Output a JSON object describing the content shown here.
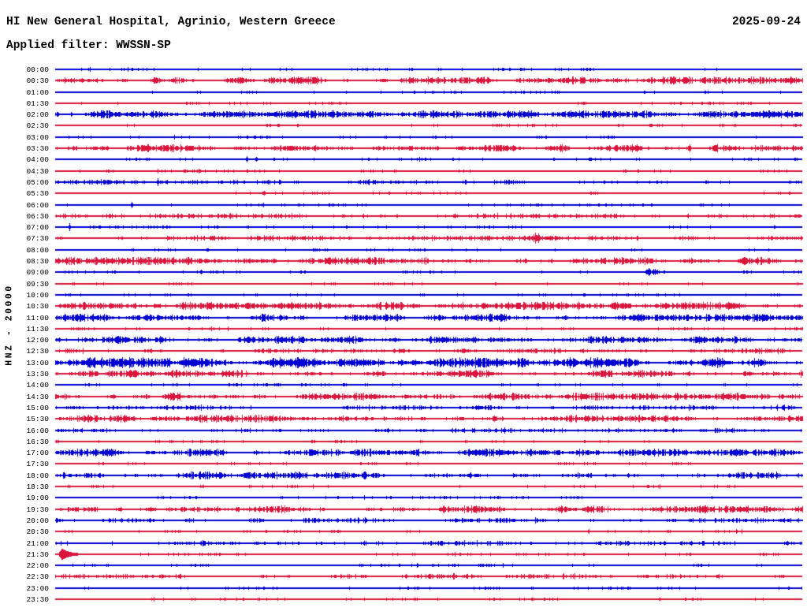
{
  "header": {
    "title": "HI New General Hospital, Agrinio, Western Greece",
    "date": "2025-09-24",
    "filter_label": "Applied filter: WWSSN-SP"
  },
  "y_axis_label": "HNZ - 20000",
  "colors": {
    "trace_blue": "#0000d2",
    "trace_red": "#dc143c",
    "text": "#000000",
    "background": "#ffffff"
  },
  "chart_data": {
    "type": "line",
    "subtype": "helicorder-24h-drum-plot",
    "title": "HI New General Hospital, Agrinio, Western Greece",
    "date": "2025-09-24",
    "filter": "WWSSN-SP",
    "channel": "HNZ",
    "scale": "20000",
    "row_interval_minutes": 30,
    "legend": "48 half-hour traces, alternating blue (:00) and red (:30); n = relative noise level 0-4; events: [type,x,amp,width] with type s=spike b=burst o=large blob, x in image px 70-1018",
    "rows": [
      {
        "t": "00:00",
        "c": "blue",
        "n": 1,
        "e": []
      },
      {
        "t": "00:30",
        "c": "red",
        "n": 3,
        "e": []
      },
      {
        "t": "01:00",
        "c": "blue",
        "n": 1,
        "e": []
      },
      {
        "t": "01:30",
        "c": "red",
        "n": 1,
        "e": []
      },
      {
        "t": "02:00",
        "c": "blue",
        "n": 3,
        "e": [
          [
            "b",
            355,
            4,
            16
          ],
          [
            "b",
            383,
            3,
            10
          ],
          [
            "b",
            965,
            3.2,
            40
          ]
        ]
      },
      {
        "t": "02:30",
        "c": "red",
        "n": 1,
        "e": [
          [
            "s",
            836,
            2,
            0
          ]
        ]
      },
      {
        "t": "03:00",
        "c": "blue",
        "n": 1,
        "e": []
      },
      {
        "t": "03:30",
        "c": "red",
        "n": 3,
        "e": [
          [
            "s",
            875,
            5,
            0
          ]
        ]
      },
      {
        "t": "04:00",
        "c": "blue",
        "n": 1,
        "e": [
          [
            "s",
            313,
            4,
            0
          ],
          [
            "s",
            325,
            3,
            0
          ],
          [
            "b",
            346,
            2,
            10
          ]
        ]
      },
      {
        "t": "04:30",
        "c": "red",
        "n": 1,
        "e": [
          [
            "s",
            237,
            2,
            0
          ]
        ]
      },
      {
        "t": "05:00",
        "c": "blue",
        "n": 2,
        "e": [
          [
            "s",
            200,
            4.5,
            0
          ],
          [
            "b",
            152,
            1.8,
            22
          ]
        ]
      },
      {
        "t": "05:30",
        "c": "red",
        "n": 1,
        "e": [
          [
            "s",
            335,
            3,
            0
          ]
        ]
      },
      {
        "t": "06:00",
        "c": "blue",
        "n": 1,
        "e": [
          [
            "s",
            167,
            4,
            0
          ]
        ]
      },
      {
        "t": "06:30",
        "c": "red",
        "n": 2,
        "e": [
          [
            "s",
            615,
            3,
            0
          ],
          [
            "s",
            912,
            2.5,
            0
          ]
        ]
      },
      {
        "t": "07:00",
        "c": "blue",
        "n": 1,
        "e": [
          [
            "s",
            88,
            4.5,
            0
          ],
          [
            "b",
            115,
            1.5,
            18
          ]
        ]
      },
      {
        "t": "07:30",
        "c": "red",
        "n": 2,
        "e": [
          [
            "b",
            668,
            3,
            8
          ],
          [
            "b",
            680,
            6,
            10
          ],
          [
            "b",
            695,
            2.5,
            10
          ]
        ]
      },
      {
        "t": "08:00",
        "c": "blue",
        "n": 1,
        "e": []
      },
      {
        "t": "08:30",
        "c": "red",
        "n": 3,
        "e": []
      },
      {
        "t": "09:00",
        "c": "blue",
        "n": 1,
        "e": [
          [
            "s",
            255,
            3,
            0
          ],
          [
            "b",
            827,
            4.5,
            14
          ]
        ]
      },
      {
        "t": "09:30",
        "c": "red",
        "n": 1,
        "e": []
      },
      {
        "t": "10:00",
        "c": "blue",
        "n": 1,
        "e": []
      },
      {
        "t": "10:30",
        "c": "red",
        "n": 3,
        "e": []
      },
      {
        "t": "11:00",
        "c": "blue",
        "n": 3,
        "e": []
      },
      {
        "t": "11:30",
        "c": "red",
        "n": 1,
        "e": []
      },
      {
        "t": "12:00",
        "c": "blue",
        "n": 3,
        "e": []
      },
      {
        "t": "12:30",
        "c": "red",
        "n": 2,
        "e": []
      },
      {
        "t": "13:00",
        "c": "blue",
        "n": 4,
        "e": []
      },
      {
        "t": "13:30",
        "c": "red",
        "n": 3,
        "e": []
      },
      {
        "t": "14:00",
        "c": "blue",
        "n": 1,
        "e": [
          [
            "b",
            340,
            1.6,
            45
          ]
        ]
      },
      {
        "t": "14:30",
        "c": "red",
        "n": 3,
        "e": [
          [
            "s",
            665,
            2,
            0
          ]
        ]
      },
      {
        "t": "15:00",
        "c": "blue",
        "n": 2,
        "e": []
      },
      {
        "t": "15:30",
        "c": "red",
        "n": 3,
        "e": [
          [
            "s",
            490,
            2,
            0
          ]
        ]
      },
      {
        "t": "16:00",
        "c": "blue",
        "n": 2,
        "e": []
      },
      {
        "t": "16:30",
        "c": "red",
        "n": 1,
        "e": []
      },
      {
        "t": "17:00",
        "c": "blue",
        "n": 3,
        "e": []
      },
      {
        "t": "17:30",
        "c": "red",
        "n": 1,
        "e": []
      },
      {
        "t": "18:00",
        "c": "blue",
        "n": 3,
        "e": []
      },
      {
        "t": "18:30",
        "c": "red",
        "n": 1,
        "e": [
          [
            "b",
            255,
            1.6,
            8
          ]
        ]
      },
      {
        "t": "19:00",
        "c": "blue",
        "n": 1,
        "e": []
      },
      {
        "t": "19:30",
        "c": "red",
        "n": 3,
        "e": []
      },
      {
        "t": "20:00",
        "c": "blue",
        "n": 2,
        "e": []
      },
      {
        "t": "20:30",
        "c": "red",
        "n": 1,
        "e": []
      },
      {
        "t": "21:00",
        "c": "blue",
        "n": 2,
        "e": []
      },
      {
        "t": "21:30",
        "c": "red",
        "n": 1,
        "e": [
          [
            "o",
            78,
            6.5,
            0
          ]
        ]
      },
      {
        "t": "22:00",
        "c": "blue",
        "n": 1,
        "e": []
      },
      {
        "t": "22:30",
        "c": "red",
        "n": 2,
        "e": []
      },
      {
        "t": "23:00",
        "c": "blue",
        "n": 1,
        "e": [
          [
            "b",
            675,
            1.8,
            8
          ]
        ]
      },
      {
        "t": "23:30",
        "c": "red",
        "n": 1,
        "e": []
      }
    ]
  }
}
